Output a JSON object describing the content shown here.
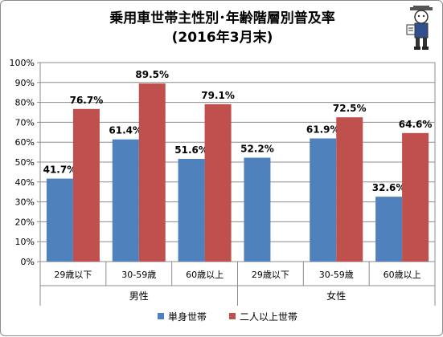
{
  "title": "乗用車世帯主性別･年齢階層別普及率",
  "subtitle": "(2016年3月末)",
  "legend": {
    "series1": "単身世帯",
    "series2": "二人以上世帯"
  },
  "colors": {
    "series1": "#4f81bd",
    "series2": "#c0504d"
  },
  "chart_data": {
    "type": "bar",
    "categories": [
      "29歳以下",
      "30-59歳",
      "60歳以上",
      "29歳以下",
      "30-59歳",
      "60歳以上"
    ],
    "groups": [
      {
        "label": "男性",
        "categories": [
          "29歳以下",
          "30-59歳",
          "60歳以上"
        ]
      },
      {
        "label": "女性",
        "categories": [
          "29歳以下",
          "30-59歳",
          "60歳以上"
        ]
      }
    ],
    "series": [
      {
        "name": "単身世帯",
        "values": [
          41.7,
          61.4,
          51.6,
          52.2,
          61.9,
          32.6
        ],
        "labels": [
          "41.7%",
          "61.4%",
          "51.6%",
          "52.2%",
          "61.9%",
          "32.6%"
        ]
      },
      {
        "name": "二人以上世帯",
        "values": [
          76.7,
          89.5,
          79.1,
          null,
          72.5,
          64.6
        ],
        "labels": [
          "76.7%",
          "89.5%",
          "79.1%",
          "",
          "72.5%",
          "64.6%"
        ]
      }
    ],
    "ylim": [
      0,
      100
    ],
    "yticks": [
      "0%",
      "10%",
      "20%",
      "30%",
      "40%",
      "50%",
      "60%",
      "70%",
      "80%",
      "90%",
      "100%"
    ],
    "grid": true,
    "legend_position": "bottom"
  }
}
